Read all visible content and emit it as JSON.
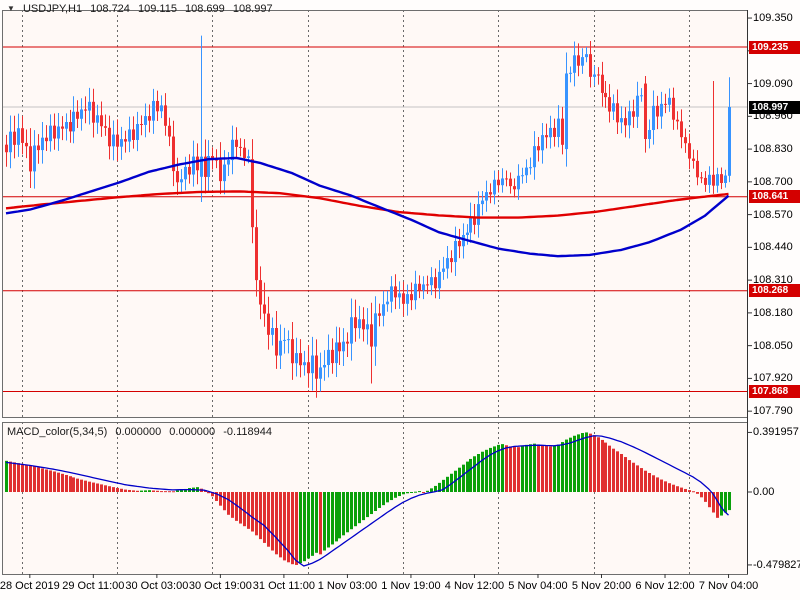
{
  "title": {
    "symbol": "USDJPY,H1",
    "open": "108.724",
    "high": "109.115",
    "low": "108.699",
    "close": "108.997"
  },
  "icons": {
    "collapse_indicator": "▼"
  },
  "indicator_title": {
    "name": "MACD_color(5,34,5)",
    "values": [
      "0.000000",
      "0.000000",
      "-0.118944"
    ]
  },
  "price_axis": {
    "ticks": [
      "109.350",
      "109.220",
      "109.090",
      "108.960",
      "108.830",
      "108.700",
      "108.570",
      "108.440",
      "108.310",
      "108.180",
      "108.050",
      "107.920",
      "107.790"
    ]
  },
  "macd_axis": {
    "ticks": [
      {
        "label": "0.391957",
        "value": 0.391957
      },
      {
        "label": "0.00",
        "value": 0
      },
      {
        "label": "-0.479827",
        "value": -0.479827
      }
    ]
  },
  "time_axis": {
    "labels": [
      "28 Oct 2019",
      "29 Oct 11:00",
      "30 Oct 03:00",
      "30 Oct 19:00",
      "31 Oct 11:00",
      "1 Nov 03:00",
      "1 Nov 19:00",
      "4 Nov 12:00",
      "5 Nov 04:00",
      "5 Nov 20:00",
      "6 Nov 12:00",
      "7 Nov 04:00"
    ]
  },
  "price_levels": [
    {
      "label": "109.235",
      "value": 109.235
    },
    {
      "label": "108.641",
      "value": 108.641
    },
    {
      "label": "108.268",
      "value": 108.268
    },
    {
      "label": "107.868",
      "value": 107.868
    }
  ],
  "current_price": {
    "label": "108.997",
    "value": 108.997
  },
  "colors": {
    "plot_bg": "#FFF9F6",
    "panel_border": "#6E6E6E",
    "grid": "#6a6a6a",
    "bull": "#3894FF",
    "bear": "#EE3030",
    "ma_blue": "#0000CC",
    "ma_red": "#E00000",
    "level_line": "#D40000",
    "current_line": "#C4C4C4",
    "badge_level": "#D40000",
    "badge_current": "#000000",
    "hist_up": "#0AA00A",
    "hist_down": "#E03030",
    "macd_line": "#0000C8"
  },
  "chart_data": {
    "type": "candlestick",
    "symbol": "USDJPY",
    "timeframe": "H1",
    "bars": 183,
    "price_range": [
      107.79,
      109.35
    ],
    "last_bar": {
      "open": 108.724,
      "high": 109.115,
      "low": 108.699,
      "close": 108.997
    },
    "horizontal_levels": [
      109.235,
      108.641,
      108.268,
      107.868
    ],
    "close_anchors": [
      [
        0,
        108.84,
        0.05
      ],
      [
        3,
        108.9,
        0.05
      ],
      [
        6,
        108.78,
        0.05
      ],
      [
        9,
        108.87,
        0.05
      ],
      [
        12,
        108.9,
        0.04
      ],
      [
        16,
        108.93,
        0.04
      ],
      [
        20,
        109.0,
        0.05
      ],
      [
        23,
        108.95,
        0.04
      ],
      [
        27,
        108.85,
        0.05
      ],
      [
        31,
        108.88,
        0.04
      ],
      [
        34,
        108.93,
        0.04
      ],
      [
        37,
        108.99,
        0.04
      ],
      [
        39,
        109.0,
        0.03
      ],
      [
        41,
        108.86,
        0.03
      ],
      [
        43,
        108.68,
        0.04
      ],
      [
        45,
        108.75,
        0.04
      ],
      [
        48,
        108.77,
        0.05
      ],
      [
        50,
        108.73,
        0.05
      ],
      [
        52,
        108.82,
        0.04
      ],
      [
        54,
        108.71,
        0.05
      ],
      [
        56,
        108.81,
        0.04
      ],
      [
        58,
        108.86,
        0.04
      ],
      [
        60,
        108.8,
        0.03
      ],
      [
        61,
        108.79,
        0.02
      ],
      [
        62,
        108.52,
        0.02
      ],
      [
        63,
        108.32,
        0.03
      ],
      [
        64,
        108.22,
        0.04
      ],
      [
        66,
        108.12,
        0.05
      ],
      [
        68,
        108.04,
        0.05
      ],
      [
        70,
        108.08,
        0.05
      ],
      [
        73,
        107.99,
        0.05
      ],
      [
        76,
        107.97,
        0.06
      ],
      [
        79,
        107.95,
        0.06
      ],
      [
        81,
        108.01,
        0.05
      ],
      [
        84,
        108.04,
        0.05
      ],
      [
        86,
        108.08,
        0.05
      ],
      [
        88,
        108.16,
        0.06
      ],
      [
        90,
        108.12,
        0.05
      ],
      [
        92,
        108.1,
        0.07
      ],
      [
        94,
        108.18,
        0.04
      ],
      [
        96,
        108.24,
        0.04
      ],
      [
        98,
        108.27,
        0.04
      ],
      [
        100,
        108.22,
        0.04
      ],
      [
        102,
        108.26,
        0.04
      ],
      [
        104,
        108.28,
        0.03
      ],
      [
        106,
        108.3,
        0.03
      ],
      [
        108,
        108.3,
        0.03
      ],
      [
        110,
        108.36,
        0.04
      ],
      [
        112,
        108.41,
        0.04
      ],
      [
        114,
        108.46,
        0.04
      ],
      [
        116,
        108.51,
        0.04
      ],
      [
        118,
        108.56,
        0.04
      ],
      [
        120,
        108.63,
        0.04
      ],
      [
        122,
        108.67,
        0.03
      ],
      [
        124,
        108.7,
        0.03
      ],
      [
        126,
        108.72,
        0.03
      ],
      [
        127,
        108.67,
        0.02
      ],
      [
        129,
        108.71,
        0.03
      ],
      [
        131,
        108.75,
        0.03
      ],
      [
        133,
        108.81,
        0.04
      ],
      [
        135,
        108.88,
        0.04
      ],
      [
        137,
        108.89,
        0.04
      ],
      [
        139,
        108.93,
        0.04
      ],
      [
        140,
        108.85,
        0.02
      ],
      [
        141,
        109.13,
        0.02
      ],
      [
        143,
        109.17,
        0.04
      ],
      [
        145,
        109.19,
        0.03
      ],
      [
        146,
        109.21,
        0.02
      ],
      [
        147,
        109.1,
        0.03
      ],
      [
        148,
        109.15,
        0.03
      ],
      [
        150,
        109.06,
        0.04
      ],
      [
        152,
        109.0,
        0.04
      ],
      [
        154,
        108.96,
        0.04
      ],
      [
        156,
        108.93,
        0.04
      ],
      [
        158,
        108.99,
        0.04
      ],
      [
        160,
        109.05,
        0.03
      ],
      [
        161,
        108.87,
        0.02
      ],
      [
        163,
        108.97,
        0.04
      ],
      [
        165,
        109.0,
        0.04
      ],
      [
        167,
        109.02,
        0.03
      ],
      [
        169,
        108.92,
        0.03
      ],
      [
        171,
        108.85,
        0.03
      ],
      [
        173,
        108.76,
        0.03
      ],
      [
        175,
        108.71,
        0.02
      ],
      [
        176,
        108.69,
        0.02
      ],
      [
        177,
        108.72,
        0.02
      ],
      [
        178,
        108.7,
        0.02
      ],
      [
        179,
        108.72,
        0.015
      ],
      [
        180,
        108.7,
        0.015
      ],
      [
        181,
        108.724,
        0.01
      ],
      [
        182,
        108.997,
        0.005
      ]
    ],
    "candle_overrides": {
      "49": {
        "open": 108.72,
        "close": 108.8,
        "high": 109.28,
        "low": 108.62
      },
      "62": {
        "open": 108.79,
        "close": 108.52
      },
      "63": {
        "close": 108.31
      },
      "65": {
        "high": 108.3
      },
      "79": {
        "low": 107.868
      },
      "92": {
        "low": 107.9
      },
      "141": {
        "open": 108.83,
        "close": 109.13
      },
      "146": {
        "high": 109.235
      },
      "161": {
        "open": 109.09,
        "close": 108.87,
        "high": 109.12
      },
      "178": {
        "high": 109.1
      },
      "182": {
        "open": 108.724,
        "high": 109.115,
        "low": 108.699,
        "close": 108.997
      }
    },
    "ma_blue_anchors": [
      [
        0,
        108.575
      ],
      [
        6,
        108.59
      ],
      [
        14,
        108.625
      ],
      [
        21,
        108.66
      ],
      [
        29,
        108.7
      ],
      [
        36,
        108.74
      ],
      [
        44,
        108.77
      ],
      [
        51,
        108.79
      ],
      [
        58,
        108.795
      ],
      [
        64,
        108.775
      ],
      [
        72,
        108.735
      ],
      [
        79,
        108.685
      ],
      [
        87,
        108.645
      ],
      [
        94,
        108.6
      ],
      [
        102,
        108.55
      ],
      [
        109,
        108.5
      ],
      [
        117,
        108.465
      ],
      [
        124,
        108.435
      ],
      [
        132,
        108.415
      ],
      [
        139,
        108.405
      ],
      [
        147,
        108.41
      ],
      [
        155,
        108.43
      ],
      [
        162,
        108.46
      ],
      [
        170,
        108.51
      ],
      [
        176,
        108.565
      ],
      [
        182,
        108.645
      ]
    ],
    "ma_red_anchors": [
      [
        0,
        108.595
      ],
      [
        9,
        108.61
      ],
      [
        19,
        108.625
      ],
      [
        29,
        108.64
      ],
      [
        39,
        108.652
      ],
      [
        49,
        108.66
      ],
      [
        59,
        108.662
      ],
      [
        69,
        108.655
      ],
      [
        79,
        108.635
      ],
      [
        89,
        108.605
      ],
      [
        99,
        108.58
      ],
      [
        109,
        108.567
      ],
      [
        119,
        108.558
      ],
      [
        129,
        108.558
      ],
      [
        139,
        108.566
      ],
      [
        149,
        108.582
      ],
      [
        159,
        108.605
      ],
      [
        169,
        108.628
      ],
      [
        178,
        108.645
      ],
      [
        182,
        108.652
      ]
    ],
    "macd": {
      "type": "histogram+signal",
      "range": [
        -0.479827,
        0.391957
      ],
      "last_value": -0.118944,
      "hist_anchors": [
        [
          0,
          0.205
        ],
        [
          3,
          0.19
        ],
        [
          6,
          0.175
        ],
        [
          9,
          0.155
        ],
        [
          12,
          0.135
        ],
        [
          15,
          0.112
        ],
        [
          18,
          0.088
        ],
        [
          21,
          0.068
        ],
        [
          24,
          0.05
        ],
        [
          27,
          0.032
        ],
        [
          30,
          0.016
        ],
        [
          33,
          0.008
        ],
        [
          36,
          0.012
        ],
        [
          39,
          0.006
        ],
        [
          42,
          0.005
        ],
        [
          44,
          0.014
        ],
        [
          46,
          0.026
        ],
        [
          48,
          0.032
        ],
        [
          50,
          0.012
        ],
        [
          52,
          -0.028
        ],
        [
          54,
          -0.09
        ],
        [
          56,
          -0.15
        ],
        [
          58,
          -0.19
        ],
        [
          60,
          -0.225
        ],
        [
          62,
          -0.26
        ],
        [
          64,
          -0.31
        ],
        [
          66,
          -0.36
        ],
        [
          68,
          -0.41
        ],
        [
          70,
          -0.45
        ],
        [
          72,
          -0.475
        ],
        [
          73,
          -0.48
        ],
        [
          75,
          -0.455
        ],
        [
          77,
          -0.42
        ],
        [
          78,
          -0.4
        ],
        [
          79,
          -0.41
        ],
        [
          80,
          -0.385
        ],
        [
          82,
          -0.345
        ],
        [
          84,
          -0.305
        ],
        [
          86,
          -0.265
        ],
        [
          88,
          -0.225
        ],
        [
          90,
          -0.185
        ],
        [
          92,
          -0.145
        ],
        [
          94,
          -0.105
        ],
        [
          96,
          -0.068
        ],
        [
          98,
          -0.038
        ],
        [
          100,
          -0.015
        ],
        [
          102,
          -0.002
        ],
        [
          104,
          0.006
        ],
        [
          105,
          -0.004
        ],
        [
          106,
          0.008
        ],
        [
          108,
          0.04
        ],
        [
          110,
          0.08
        ],
        [
          112,
          0.12
        ],
        [
          114,
          0.16
        ],
        [
          116,
          0.2
        ],
        [
          118,
          0.235
        ],
        [
          120,
          0.265
        ],
        [
          122,
          0.29
        ],
        [
          124,
          0.31
        ],
        [
          125,
          0.315
        ],
        [
          127,
          0.3
        ],
        [
          129,
          0.295
        ],
        [
          131,
          0.31
        ],
        [
          133,
          0.318
        ],
        [
          135,
          0.308
        ],
        [
          137,
          0.3
        ],
        [
          139,
          0.312
        ],
        [
          141,
          0.345
        ],
        [
          143,
          0.37
        ],
        [
          145,
          0.388
        ],
        [
          146,
          0.392
        ],
        [
          147,
          0.384
        ],
        [
          149,
          0.36
        ],
        [
          151,
          0.325
        ],
        [
          153,
          0.285
        ],
        [
          155,
          0.25
        ],
        [
          157,
          0.21
        ],
        [
          159,
          0.175
        ],
        [
          161,
          0.14
        ],
        [
          163,
          0.11
        ],
        [
          165,
          0.082
        ],
        [
          167,
          0.058
        ],
        [
          169,
          0.038
        ],
        [
          171,
          0.02
        ],
        [
          173,
          0.005
        ],
        [
          174,
          -0.012
        ],
        [
          175,
          -0.035
        ],
        [
          176,
          -0.065
        ],
        [
          177,
          -0.1
        ],
        [
          178,
          -0.135
        ],
        [
          179,
          -0.17
        ],
        [
          180,
          -0.155
        ],
        [
          181,
          -0.135
        ],
        [
          182,
          -0.118944
        ]
      ],
      "signal_anchors": [
        [
          0,
          0.195
        ],
        [
          6,
          0.175
        ],
        [
          12,
          0.15
        ],
        [
          18,
          0.118
        ],
        [
          24,
          0.082
        ],
        [
          30,
          0.048
        ],
        [
          36,
          0.026
        ],
        [
          42,
          0.014
        ],
        [
          46,
          0.016
        ],
        [
          50,
          0.012
        ],
        [
          53,
          -0.012
        ],
        [
          56,
          -0.05
        ],
        [
          59,
          -0.105
        ],
        [
          62,
          -0.165
        ],
        [
          65,
          -0.22
        ],
        [
          68,
          -0.3
        ],
        [
          71,
          -0.385
        ],
        [
          73,
          -0.45
        ],
        [
          75,
          -0.487
        ],
        [
          77,
          -0.47
        ],
        [
          79,
          -0.445
        ],
        [
          81,
          -0.41
        ],
        [
          84,
          -0.355
        ],
        [
          87,
          -0.3
        ],
        [
          90,
          -0.245
        ],
        [
          93,
          -0.19
        ],
        [
          96,
          -0.135
        ],
        [
          98,
          -0.1
        ],
        [
          100,
          -0.068
        ],
        [
          102,
          -0.042
        ],
        [
          104,
          -0.022
        ],
        [
          106,
          -0.008
        ],
        [
          108,
          0.002
        ],
        [
          110,
          0.015
        ],
        [
          112,
          0.05
        ],
        [
          114,
          0.09
        ],
        [
          116,
          0.13
        ],
        [
          118,
          0.17
        ],
        [
          120,
          0.21
        ],
        [
          122,
          0.245
        ],
        [
          124,
          0.272
        ],
        [
          126,
          0.29
        ],
        [
          128,
          0.3
        ],
        [
          130,
          0.303
        ],
        [
          132,
          0.306
        ],
        [
          134,
          0.308
        ],
        [
          136,
          0.306
        ],
        [
          138,
          0.304
        ],
        [
          140,
          0.31
        ],
        [
          142,
          0.322
        ],
        [
          144,
          0.34
        ],
        [
          146,
          0.358
        ],
        [
          148,
          0.37
        ],
        [
          150,
          0.368
        ],
        [
          152,
          0.355
        ],
        [
          155,
          0.33
        ],
        [
          158,
          0.297
        ],
        [
          161,
          0.26
        ],
        [
          164,
          0.22
        ],
        [
          167,
          0.18
        ],
        [
          170,
          0.14
        ],
        [
          173,
          0.1
        ],
        [
          175,
          0.065
        ],
        [
          177,
          0.02
        ],
        [
          178,
          -0.01
        ],
        [
          179,
          -0.05
        ],
        [
          180,
          -0.095
        ],
        [
          181,
          -0.128
        ],
        [
          182,
          -0.152
        ]
      ]
    }
  }
}
